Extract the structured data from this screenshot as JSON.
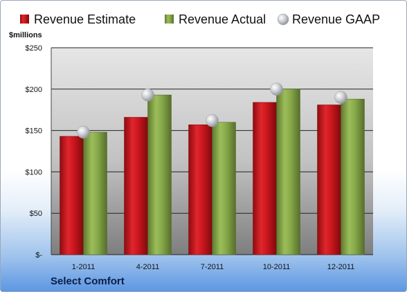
{
  "company": "Select Comfort",
  "unit_label": "$millions",
  "colors": {
    "estimate": "#c9161d",
    "actual": "#87a94a",
    "gaap": "#c9cbd0",
    "plot_top": "#e3e3e3",
    "plot_bottom": "#8a8a8a",
    "grid": "#1a1a1a"
  },
  "chart_data": {
    "type": "bar",
    "categories": [
      "1-2011",
      "4-2011",
      "7-2011",
      "10-2011",
      "12-2011"
    ],
    "series": [
      {
        "name": "Revenue Estimate",
        "type": "bar",
        "values": [
          143,
          166,
          157,
          184,
          181
        ]
      },
      {
        "name": "Revenue Actual",
        "type": "bar",
        "values": [
          148,
          193,
          160,
          200,
          188
        ]
      },
      {
        "name": "Revenue GAAP",
        "type": "scatter",
        "values": [
          148,
          193,
          162,
          200,
          190
        ]
      }
    ],
    "ylim": [
      0,
      250
    ],
    "yticks": [
      0,
      50,
      100,
      150,
      200,
      250
    ],
    "ytick_labels": [
      "$-",
      "$50",
      "$100",
      "$150",
      "$200",
      "$250"
    ],
    "ylabel": "$millions",
    "grid": true,
    "legend_position": "top"
  }
}
